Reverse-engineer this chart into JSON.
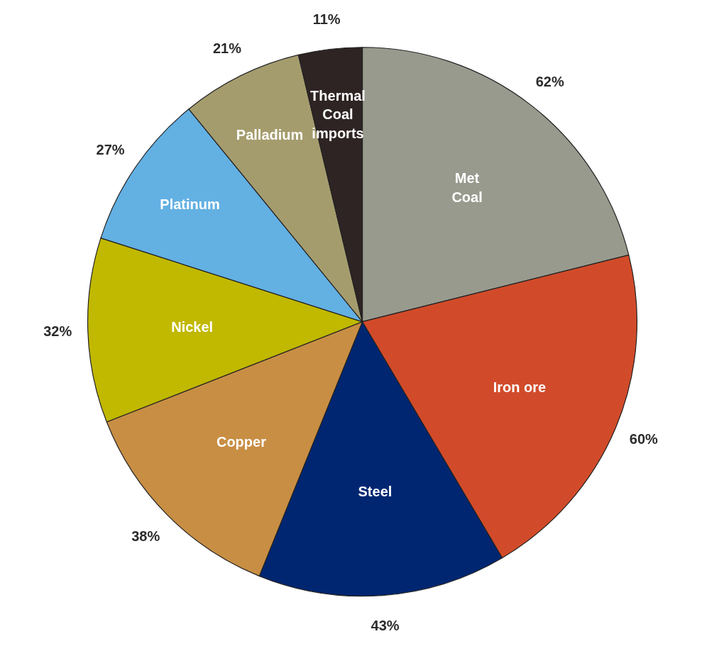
{
  "chart_data": {
    "type": "pie",
    "categories": [
      "Met\nCoal",
      "Iron ore",
      "Steel",
      "Copper",
      "Nickel",
      "Platinum",
      "Palladium",
      "Thermal\nCoal\nimports"
    ],
    "values": [
      62,
      60,
      43,
      38,
      32,
      27,
      21,
      11
    ],
    "colors": [
      "#999a8e",
      "#d14b2a",
      "#002672",
      "#c88e44",
      "#c1b800",
      "#63b0e3",
      "#a59c6e",
      "#2e2424"
    ],
    "value_labels": [
      "62%",
      "60%",
      "43%",
      "38%",
      "32%",
      "27%",
      "21%",
      "11%"
    ]
  }
}
